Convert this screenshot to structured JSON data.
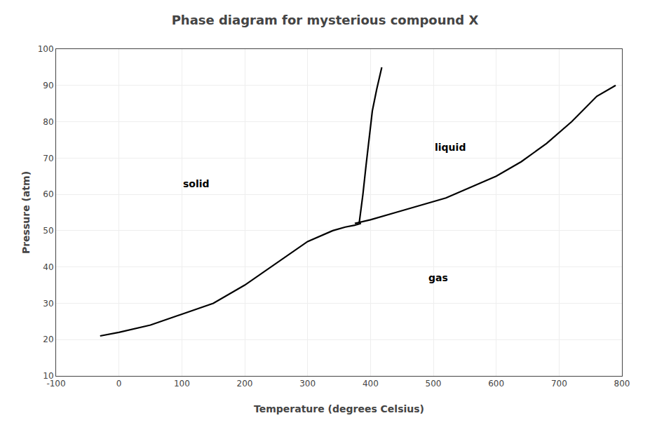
{
  "chart_data": {
    "type": "line",
    "title": "Phase diagram for mysterious compound X",
    "x_label": "Temperature (degrees Celsius)",
    "y_label": "Pressure (atm)",
    "xlim": [
      -100,
      800
    ],
    "ylim": [
      10,
      100
    ],
    "xticks": [
      -100,
      0,
      100,
      200,
      300,
      400,
      500,
      600,
      700,
      800
    ],
    "yticks": [
      10,
      20,
      30,
      40,
      50,
      60,
      70,
      80,
      90,
      100
    ],
    "grid": true,
    "series": [
      {
        "color": "#000000",
        "x": [
          -30,
          0,
          50,
          100,
          150,
          200,
          250,
          300,
          340,
          360,
          375,
          385
        ],
        "values": [
          21,
          22,
          24,
          27,
          30,
          35,
          41,
          47,
          50,
          51,
          51.5,
          52
        ]
      },
      {
        "color": "#000000",
        "x": [
          382,
          388,
          393,
          398,
          403,
          410,
          418
        ],
        "values": [
          52,
          60,
          68,
          76,
          83,
          89,
          95
        ]
      },
      {
        "color": "#000000",
        "x": [
          375,
          400,
          440,
          480,
          520,
          560,
          600,
          640,
          680,
          720,
          760,
          790
        ],
        "values": [
          52,
          53,
          55,
          57,
          59,
          62,
          65,
          69,
          74,
          80,
          87,
          90
        ]
      }
    ],
    "annotations": [
      {
        "text": "solid",
        "x": 100,
        "y": 63
      },
      {
        "text": "liquid",
        "x": 500,
        "y": 73
      },
      {
        "text": "gas",
        "x": 490,
        "y": 37
      }
    ]
  }
}
